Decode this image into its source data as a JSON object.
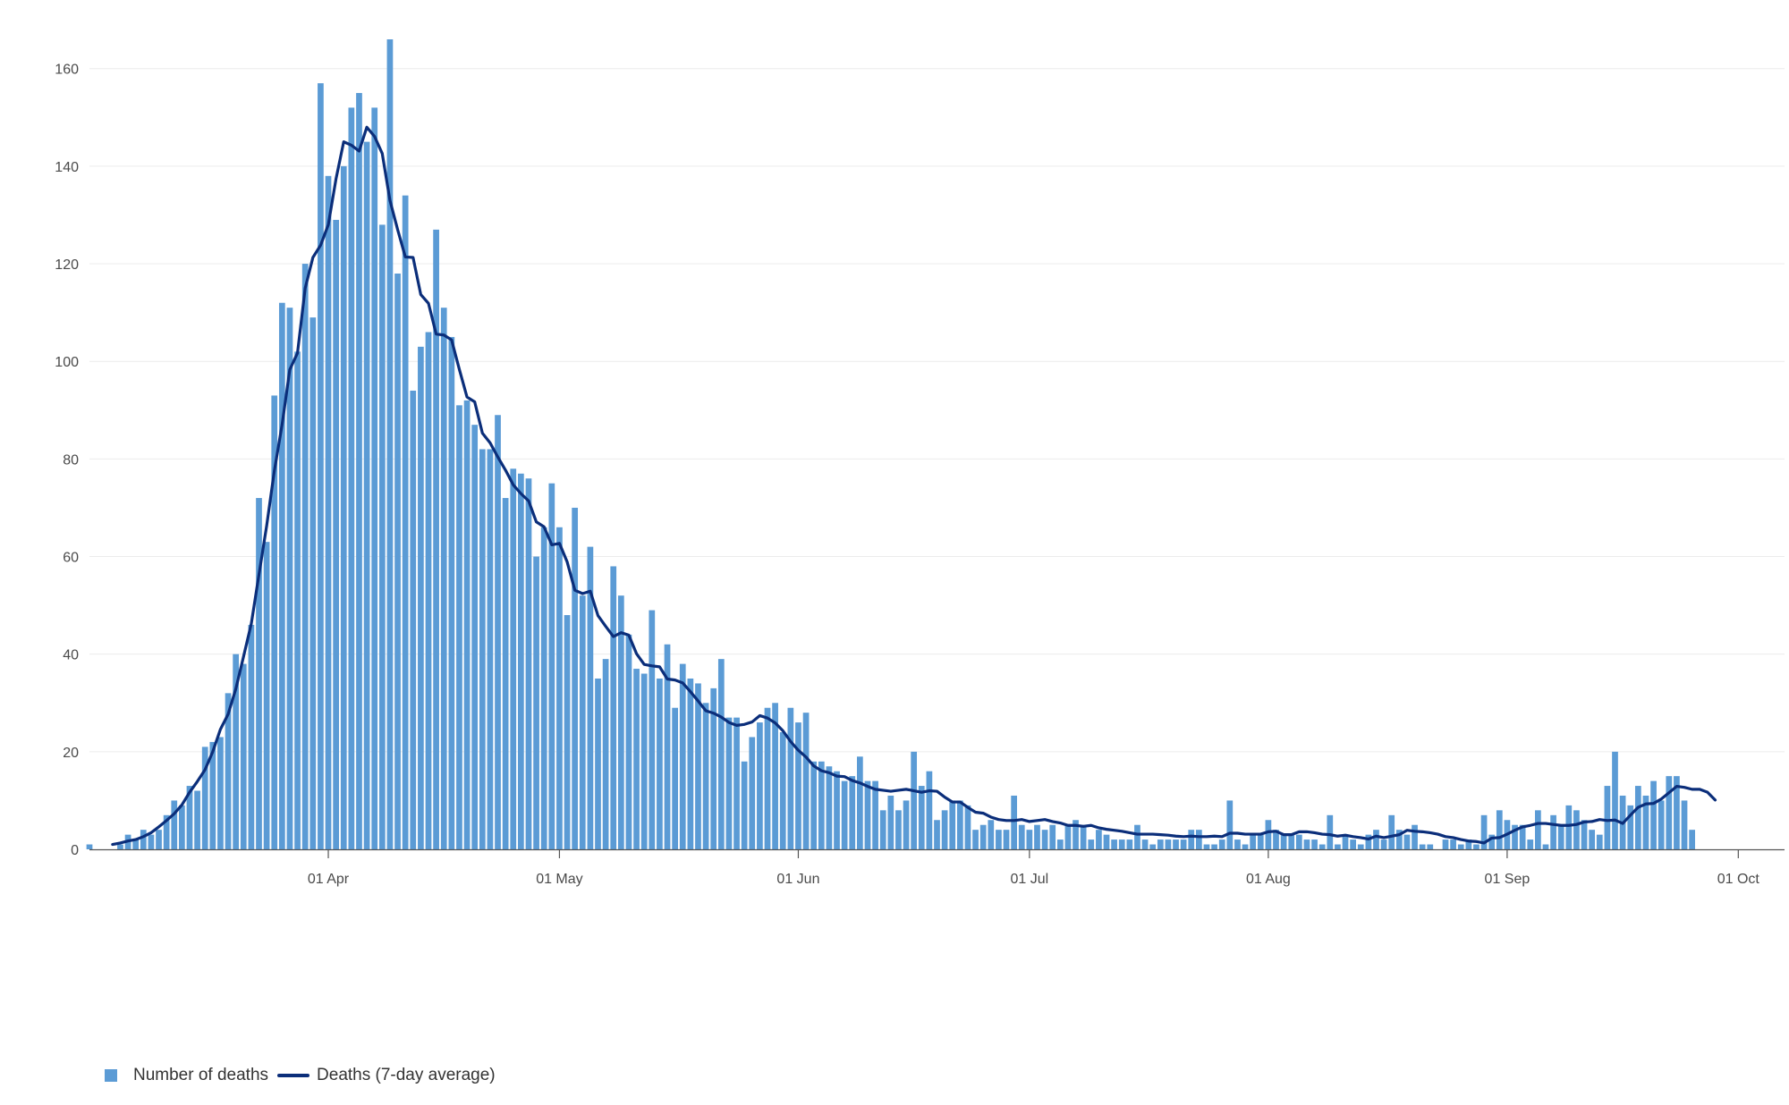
{
  "chart_data": {
    "type": "bar",
    "title": "",
    "xlabel": "",
    "ylabel": "",
    "ylim": [
      0,
      166
    ],
    "xlim": [
      "2020-03-01",
      "2020-10-07"
    ],
    "yticks": [
      0,
      20,
      40,
      60,
      80,
      100,
      120,
      140,
      160
    ],
    "xticks": [
      {
        "date": "2020-04-01",
        "label": "01 Apr"
      },
      {
        "date": "2020-05-01",
        "label": "01 May"
      },
      {
        "date": "2020-06-01",
        "label": "01 Jun"
      },
      {
        "date": "2020-07-01",
        "label": "01 Jul"
      },
      {
        "date": "2020-08-01",
        "label": "01 Aug"
      },
      {
        "date": "2020-09-01",
        "label": "01 Sep"
      },
      {
        "date": "2020-10-01",
        "label": "01 Oct"
      }
    ],
    "grid": true,
    "legend_position": "bottom-left",
    "series": [
      {
        "name": "Number of deaths",
        "type": "bar",
        "color": "#5b9bd5",
        "start_date": "2020-03-01",
        "values": [
          1,
          0,
          0,
          0,
          1,
          3,
          2,
          4,
          3,
          4,
          7,
          10,
          9,
          13,
          12,
          21,
          22,
          23,
          32,
          40,
          38,
          46,
          72,
          63,
          93,
          112,
          111,
          102,
          120,
          109,
          157,
          138,
          129,
          140,
          152,
          155,
          145,
          152,
          128,
          166,
          118,
          134,
          94,
          103,
          106,
          127,
          111,
          105,
          91,
          92,
          87,
          82,
          82,
          89,
          72,
          78,
          77,
          76,
          60,
          66,
          75,
          66,
          48,
          70,
          52,
          62,
          35,
          39,
          58,
          52,
          44,
          37,
          36,
          49,
          35,
          42,
          29,
          38,
          35,
          34,
          30,
          33,
          39,
          27,
          27,
          18,
          23,
          26,
          29,
          30,
          24,
          29,
          26,
          28,
          18,
          18,
          17,
          16,
          14,
          15,
          19,
          14,
          14,
          8,
          11,
          8,
          10,
          20,
          13,
          16,
          6,
          8,
          10,
          10,
          9,
          4,
          5,
          6,
          4,
          4,
          11,
          5,
          4,
          5,
          4,
          5,
          2,
          5,
          6,
          5,
          2,
          4,
          3,
          2,
          2,
          2,
          5,
          2,
          1,
          2,
          2,
          2,
          2,
          4,
          4,
          1,
          1,
          2,
          10,
          2,
          1,
          3,
          3,
          6,
          4,
          3,
          3,
          3,
          2,
          2,
          1,
          7,
          1,
          3,
          2,
          1,
          3,
          4,
          2,
          7,
          4,
          3,
          5,
          1,
          1,
          0,
          2,
          2,
          1,
          2,
          1,
          7,
          3,
          8,
          6,
          5,
          5,
          2,
          8,
          1,
          7,
          5,
          9,
          8,
          6,
          4,
          3,
          13,
          20,
          11,
          9,
          13,
          11,
          14,
          10,
          15,
          15,
          10,
          4
        ]
      },
      {
        "name": "Deaths (7-day average)",
        "type": "line",
        "color": "#0b2e7a",
        "start_date": "2020-03-04",
        "values": [
          1,
          1.3,
          1.7,
          2,
          2.6,
          3.4,
          4.6,
          5.9,
          7.3,
          9.1,
          11.7,
          13.9,
          16.3,
          20,
          24.6,
          27.7,
          32.9,
          39.5,
          46.2,
          56.3,
          66.3,
          77.6,
          87,
          98.3,
          101.7,
          115,
          121.3,
          123.8,
          128,
          137.4,
          145,
          144.3,
          143.1,
          148,
          146.1,
          142.6,
          133,
          127,
          121.4,
          121.3,
          113.7,
          111.9,
          105.6,
          105.4,
          104.4,
          98.4,
          92.7,
          91.7,
          85.3,
          83.3,
          80.4,
          77.7,
          74.7,
          72.9,
          71.4,
          67.1,
          66.1,
          62.4,
          62.7,
          58.9,
          53.1,
          52.4,
          52.9,
          47.9,
          45.7,
          43.6,
          44.4,
          43.9,
          40.1,
          37.9,
          37.6,
          37.4,
          34.9,
          34.7,
          34.1,
          32.3,
          30.4,
          28.4,
          27.9,
          27.1,
          26,
          25.4,
          25.6,
          26.1,
          27.4,
          26.9,
          25.9,
          24.3,
          22.1,
          20.3,
          18.9,
          17.1,
          16.1,
          15.7,
          15,
          14.9,
          14.1,
          13.6,
          12.9,
          12.3,
          12.1,
          11.9,
          12.1,
          12.3,
          12,
          11.7,
          12,
          11.9,
          10.7,
          9.7,
          9.7,
          8.6,
          7.6,
          7.4,
          6.6,
          6.1,
          5.9,
          5.9,
          6.1,
          5.7,
          5.9,
          6.1,
          5.7,
          5.4,
          4.9,
          4.9,
          4.7,
          4.9,
          4.4,
          4.1,
          3.9,
          3.7,
          3.4,
          3.1,
          3.1,
          3.1,
          3,
          2.9,
          2.7,
          2.6,
          2.7,
          2.6,
          2.6,
          2.7,
          2.6,
          3.3,
          3.3,
          3.1,
          3.1,
          3.1,
          3.6,
          3.7,
          3,
          3,
          3.6,
          3.6,
          3.4,
          3.1,
          3,
          2.7,
          2.9,
          2.6,
          2.4,
          2.1,
          2.7,
          2.4,
          2.7,
          3,
          3.9,
          3.7,
          3.6,
          3.4,
          3.1,
          2.6,
          2.4,
          2,
          1.7,
          1.6,
          1.3,
          2.3,
          2.4,
          3.1,
          3.9,
          4.6,
          4.9,
          5.3,
          5.3,
          5.1,
          4.9,
          4.9,
          5.1,
          5.6,
          5.7,
          6.1,
          5.9,
          6,
          5.3,
          7,
          8.6,
          9.3,
          9.4,
          10.3,
          11.6,
          12.9,
          12.7,
          12.3,
          12.3,
          11.7,
          10.1
        ]
      }
    ]
  },
  "legend": {
    "items": [
      {
        "label": "Number of deaths",
        "color": "#5b9bd5",
        "shape": "square"
      },
      {
        "label": "Deaths (7-day average)",
        "color": "#0b2e7a",
        "shape": "line"
      }
    ]
  }
}
